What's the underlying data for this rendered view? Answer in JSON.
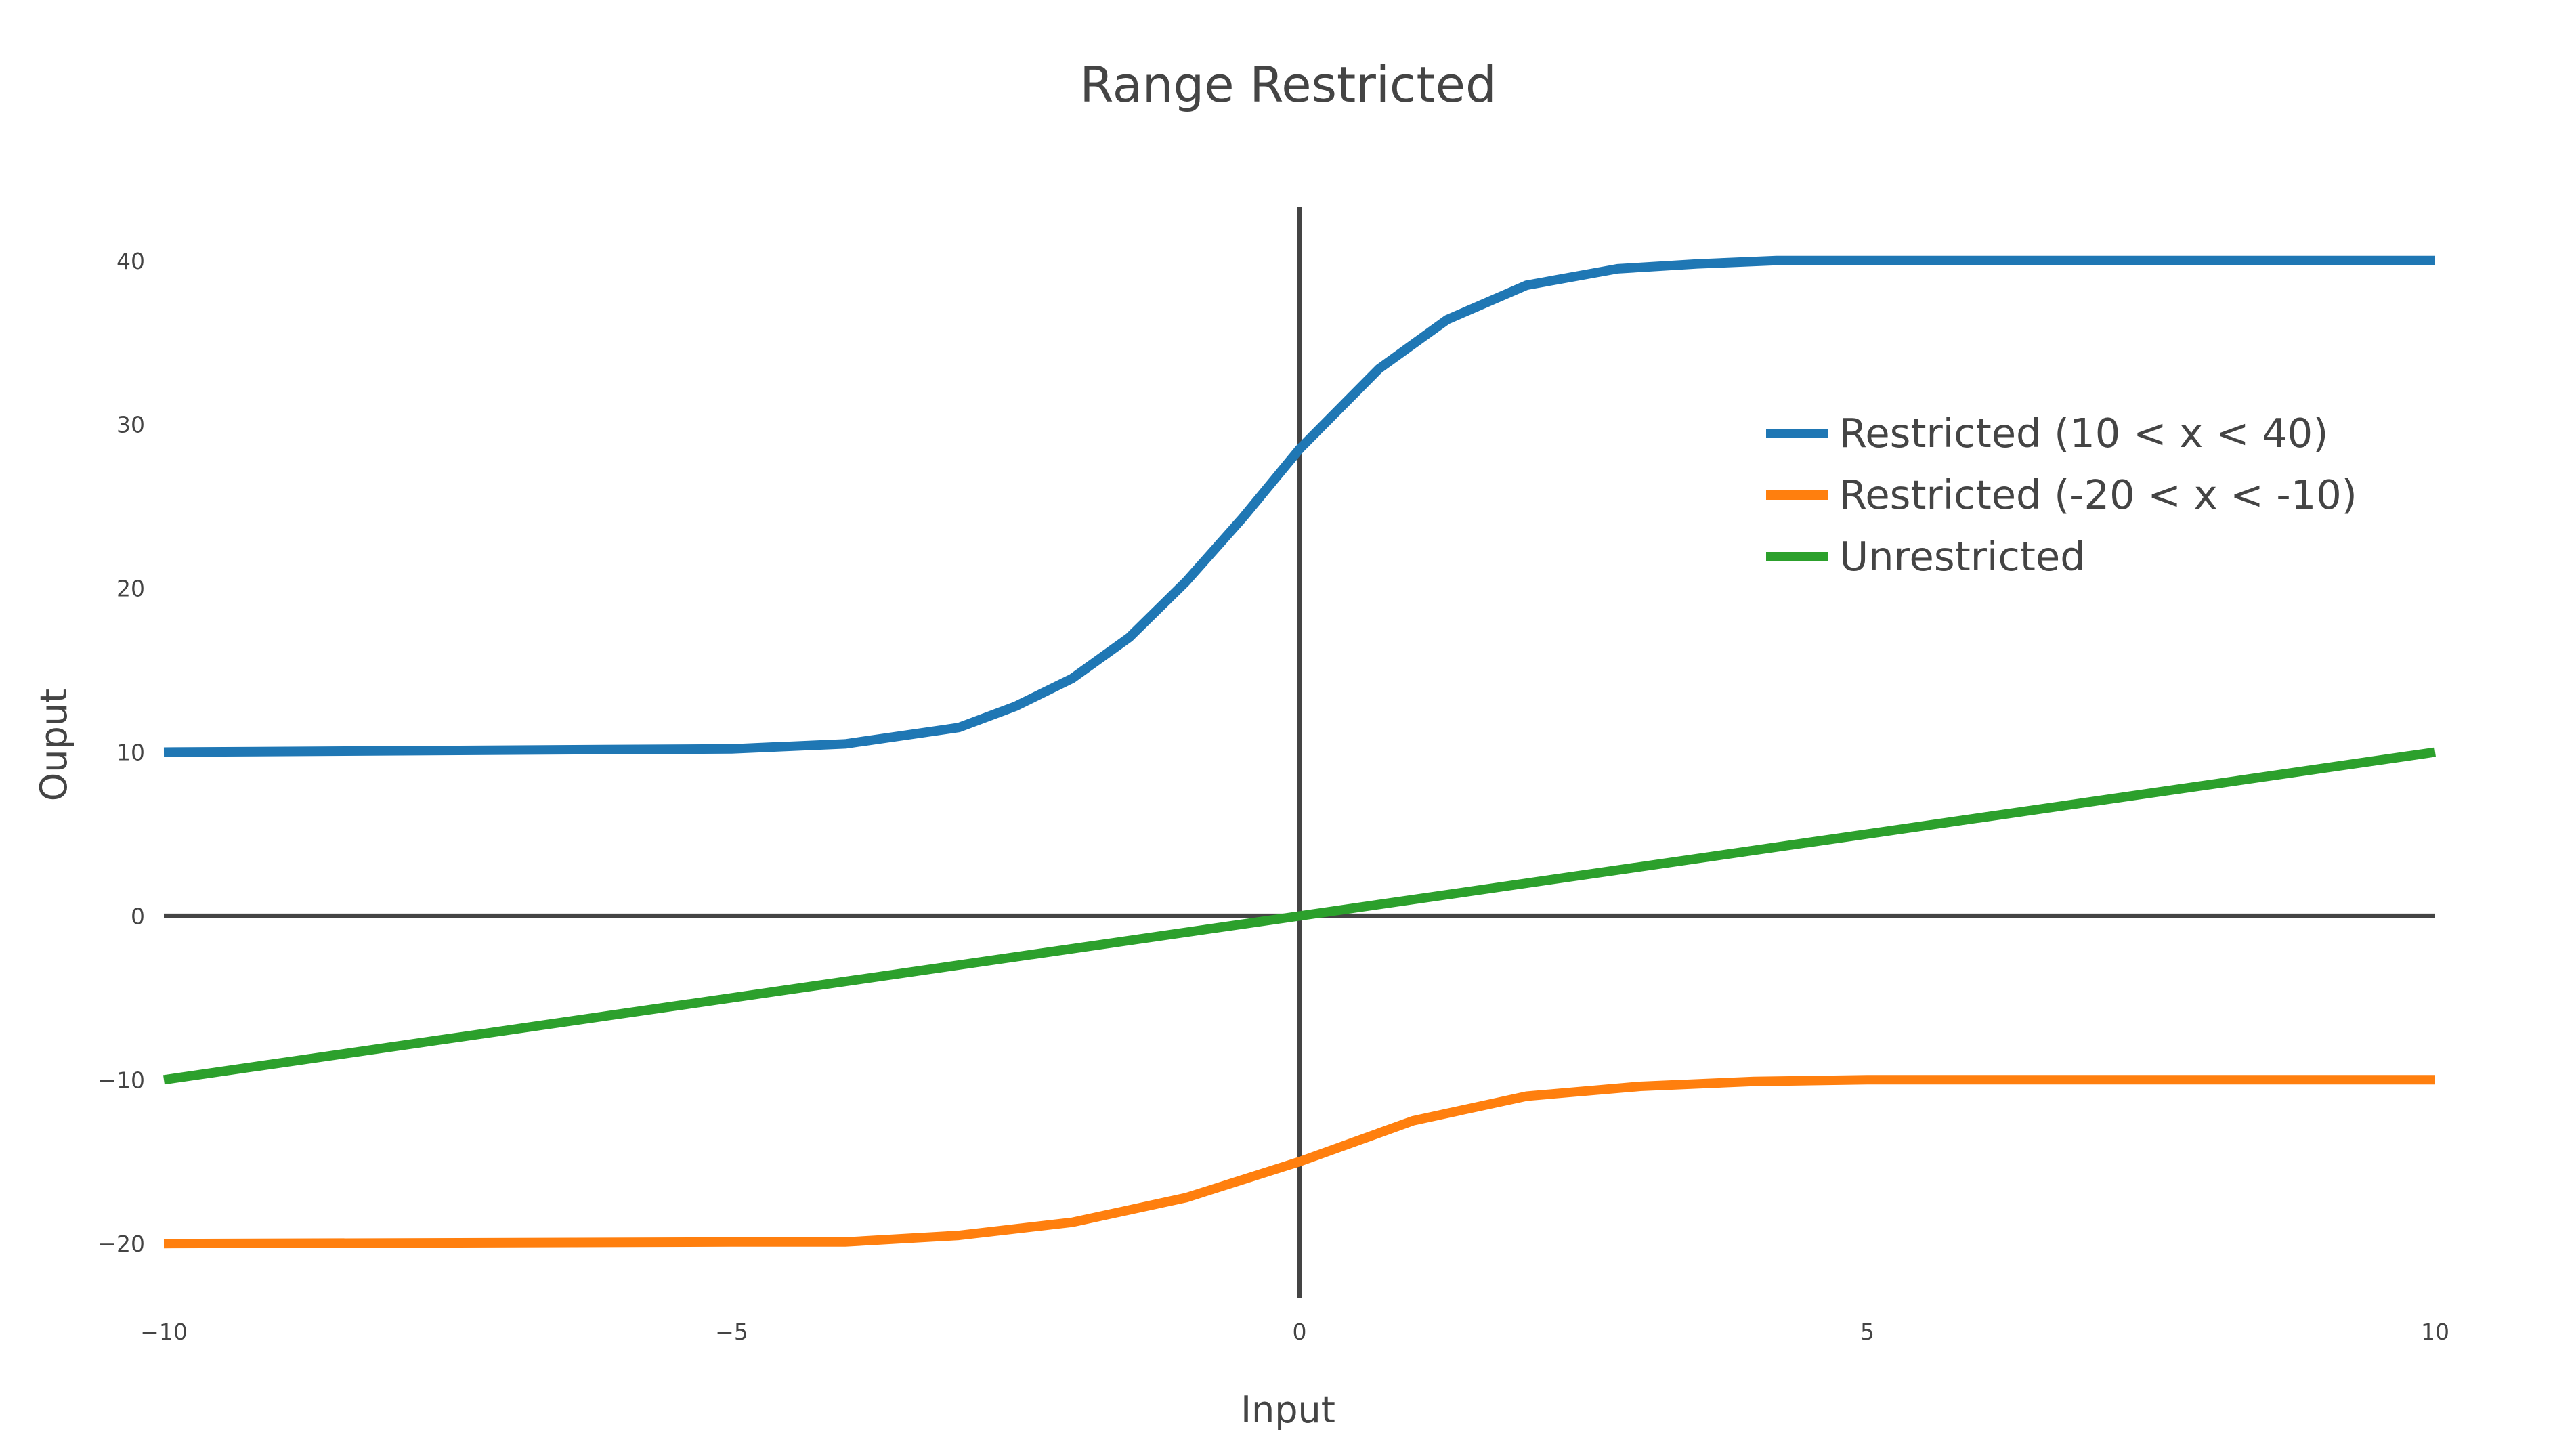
{
  "chart_data": {
    "type": "line",
    "title": "Range Restricted",
    "xlabel": "Input",
    "ylabel": "Ouput",
    "xlim": [
      -10,
      10
    ],
    "ylim": [
      -23.3,
      43.3
    ],
    "x_ticks": [
      -10,
      -5,
      0,
      5,
      10
    ],
    "x_tick_labels": [
      "−10",
      "−5",
      "0",
      "5",
      "10"
    ],
    "y_ticks": [
      -20,
      -10,
      0,
      10,
      20,
      30,
      40
    ],
    "y_tick_labels": [
      "−20",
      "−10",
      "0",
      "10",
      "20",
      "30",
      "40"
    ],
    "grid": false,
    "zero_lines": true,
    "legend": {
      "position": "top-right"
    },
    "series": [
      {
        "name": "Restricted (10 < x < 40)",
        "color": "#1f77b4",
        "x": [
          -10,
          -5,
          -4,
          -3,
          -2.5,
          -2,
          -1.5,
          -1,
          -0.5,
          0,
          0.7,
          1.3,
          2,
          2.8,
          3.5,
          4.2,
          5,
          6,
          7,
          8,
          9,
          10
        ],
        "y": [
          10.0,
          10.2,
          10.5,
          11.5,
          12.8,
          14.5,
          17.0,
          20.4,
          24.3,
          28.5,
          33.4,
          36.4,
          38.5,
          39.5,
          39.8,
          40.0,
          40.0,
          40.0,
          40.0,
          40.0,
          40.0,
          40.0
        ]
      },
      {
        "name": "Restricted (-20 < x < -10)",
        "color": "#ff7f0e",
        "x": [
          -10,
          -5,
          -4,
          -3,
          -2,
          -1,
          0,
          1,
          2,
          3,
          4,
          5,
          6,
          7,
          8,
          9,
          10
        ],
        "y": [
          -20.0,
          -19.9,
          -19.9,
          -19.5,
          -18.7,
          -17.2,
          -15.0,
          -12.5,
          -11.0,
          -10.4,
          -10.1,
          -10.0,
          -10.0,
          -10.0,
          -10.0,
          -10.0,
          -10.0
        ]
      },
      {
        "name": "Unrestricted",
        "color": "#2ca02c",
        "x": [
          -10,
          10
        ],
        "y": [
          -10,
          10
        ]
      }
    ]
  }
}
